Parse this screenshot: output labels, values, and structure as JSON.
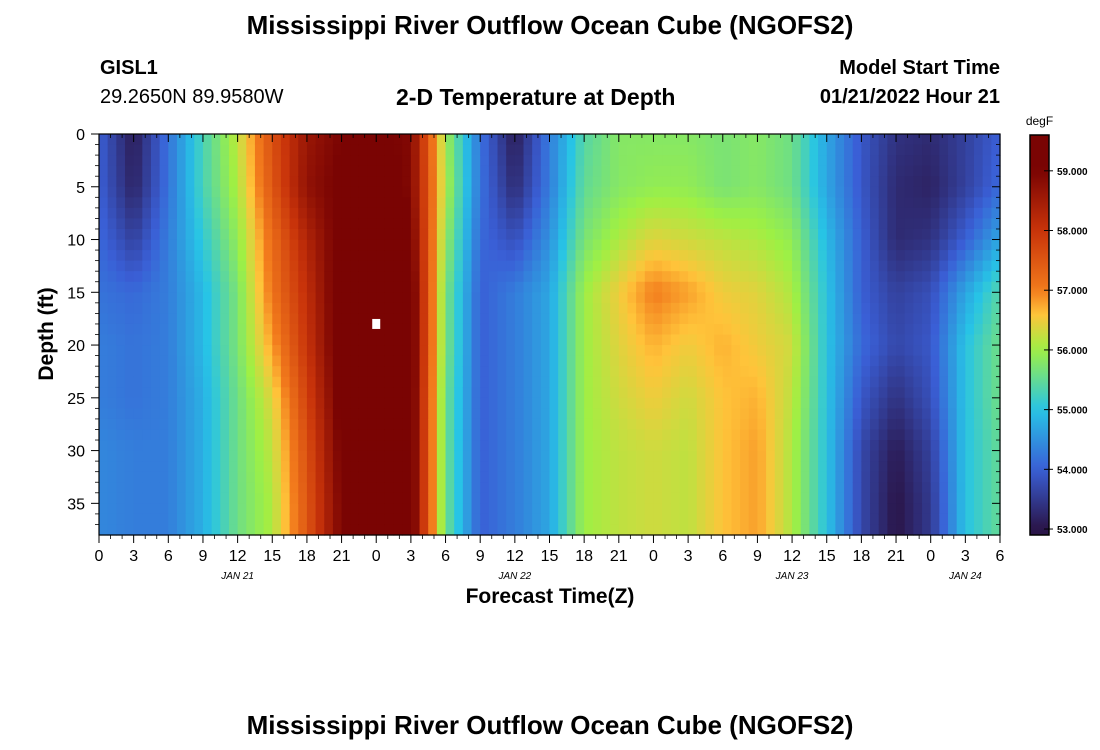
{
  "header": {
    "title": "Mississippi River Outflow Ocean Cube (NGOFS2)",
    "station_id": "GISL1",
    "coordinates": "29.2650N  89.9580W",
    "plot_title": "2-D Temperature at Depth",
    "start_label": "Model Start Time",
    "start_value": "01/21/2022 Hour 21"
  },
  "footer": {
    "title": "Mississippi River Outflow Ocean Cube (NGOFS2)"
  },
  "chart_data": {
    "type": "heatmap",
    "title": "2-D Temperature at Depth",
    "xlabel": "Forecast Time(Z)",
    "ylabel": "Depth (ft)",
    "x_tick_labels": [
      "0",
      "3",
      "6",
      "9",
      "12",
      "15",
      "18",
      "21",
      "0",
      "3",
      "6",
      "9",
      "12",
      "15",
      "18",
      "21",
      "0",
      "3",
      "6",
      "9",
      "12",
      "15",
      "18",
      "21",
      "0",
      "3",
      "6"
    ],
    "date_labels": [
      {
        "label": "JAN 21",
        "at_tick": 4
      },
      {
        "label": "JAN 22",
        "at_tick": 12
      },
      {
        "label": "JAN 23",
        "at_tick": 20
      },
      {
        "label": "JAN 24",
        "at_tick": 25
      }
    ],
    "y_ticks": [
      0,
      5,
      10,
      15,
      20,
      25,
      30,
      35
    ],
    "y_range": [
      0,
      38
    ],
    "colorbar": {
      "unit": "degF",
      "range": [
        52.9,
        59.6
      ],
      "ticks": [
        "53.000",
        "54.000",
        "55.000",
        "56.000",
        "57.000",
        "58.000",
        "59.000"
      ]
    },
    "forecast_hours": [
      0,
      3,
      6,
      9,
      12,
      15,
      18,
      21,
      24,
      27,
      30,
      33,
      36,
      39,
      42,
      45,
      48,
      51,
      54,
      57,
      60,
      63,
      66,
      69,
      72,
      75,
      78
    ],
    "depths_ft": [
      0,
      5,
      10,
      15,
      20,
      25,
      30,
      35,
      38
    ],
    "temperature_columns": [
      [
        54.0,
        54.0,
        54.1,
        54.2,
        54.3,
        54.3,
        54.4,
        54.4,
        54.4
      ],
      [
        53.1,
        53.2,
        53.6,
        54.1,
        54.2,
        54.2,
        54.3,
        54.3,
        54.3
      ],
      [
        54.2,
        54.2,
        54.3,
        54.3,
        54.3,
        54.3,
        54.3,
        54.3,
        54.3
      ],
      [
        55.3,
        55.3,
        55.1,
        54.9,
        54.9,
        54.8,
        54.8,
        54.8,
        54.8
      ],
      [
        56.2,
        56.1,
        55.9,
        55.7,
        55.7,
        55.6,
        55.6,
        55.6,
        55.6
      ],
      [
        57.6,
        57.5,
        57.2,
        57.1,
        56.8,
        56.4,
        56.2,
        56.1,
        56.1
      ],
      [
        58.6,
        58.7,
        58.3,
        58.1,
        58.0,
        57.8,
        57.6,
        57.5,
        57.5
      ],
      [
        59.0,
        59.1,
        59.2,
        59.3,
        59.3,
        59.2,
        59.1,
        59.0,
        59.0
      ],
      [
        59.1,
        59.2,
        59.4,
        59.5,
        59.5,
        59.5,
        59.5,
        59.5,
        59.5
      ],
      [
        58.9,
        58.9,
        59.1,
        59.3,
        59.3,
        59.3,
        59.3,
        59.3,
        59.3
      ],
      [
        56.0,
        56.1,
        55.9,
        55.7,
        55.7,
        55.6,
        55.6,
        55.6,
        55.6
      ],
      [
        54.2,
        54.2,
        54.1,
        54.0,
        54.0,
        54.0,
        54.0,
        54.0,
        54.0
      ],
      [
        53.1,
        53.3,
        53.8,
        54.3,
        54.3,
        54.3,
        54.3,
        54.3,
        54.3
      ],
      [
        54.3,
        54.3,
        54.5,
        54.7,
        54.7,
        54.7,
        54.7,
        54.7,
        54.7
      ],
      [
        55.4,
        55.5,
        55.7,
        56.0,
        56.0,
        56.0,
        56.0,
        56.0,
        56.0
      ],
      [
        55.8,
        55.8,
        56.1,
        56.5,
        56.4,
        56.3,
        56.2,
        56.2,
        56.2
      ],
      [
        55.8,
        55.9,
        56.4,
        57.0,
        56.7,
        56.5,
        56.3,
        56.3,
        56.3
      ],
      [
        55.8,
        55.9,
        56.3,
        56.8,
        56.5,
        56.3,
        56.2,
        56.2,
        56.2
      ],
      [
        55.7,
        55.7,
        56.2,
        56.5,
        56.7,
        56.6,
        56.6,
        56.6,
        56.6
      ],
      [
        55.8,
        55.8,
        56.1,
        56.4,
        56.5,
        56.7,
        56.8,
        56.8,
        56.8
      ],
      [
        55.6,
        55.6,
        55.9,
        56.1,
        56.3,
        56.2,
        56.1,
        56.1,
        56.1
      ],
      [
        54.7,
        54.7,
        54.9,
        55.0,
        55.0,
        55.0,
        55.0,
        55.0,
        55.0
      ],
      [
        53.9,
        53.9,
        54.0,
        54.0,
        54.1,
        53.9,
        53.7,
        53.7,
        53.7
      ],
      [
        53.4,
        53.3,
        53.3,
        53.6,
        53.7,
        53.4,
        53.1,
        53.0,
        53.0
      ],
      [
        53.3,
        53.2,
        53.4,
        53.8,
        53.9,
        53.8,
        53.6,
        53.5,
        53.5
      ],
      [
        53.6,
        53.6,
        54.0,
        54.7,
        55.0,
        55.0,
        55.0,
        55.0,
        55.0
      ],
      [
        54.0,
        54.1,
        54.7,
        55.4,
        55.6,
        55.6,
        55.5,
        55.5,
        55.5
      ]
    ],
    "missing_cell": {
      "forecast_hour": 24,
      "depth_ft": 18
    },
    "colors": {
      "c53": "#2a1447",
      "c54": "#3a5fd6",
      "c55": "#27c4e6",
      "c56": "#9ef044",
      "c56_6": "#ffc43a",
      "c57": "#f27a1c",
      "c58": "#c8330a",
      "c59": "#7a0403"
    }
  }
}
